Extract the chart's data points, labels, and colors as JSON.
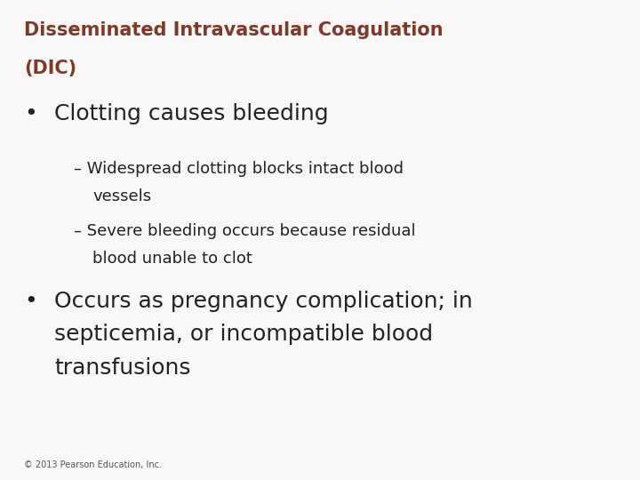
{
  "background_color": "#f8f6f6",
  "title_line1": "Disseminated Intravascular Coagulation",
  "title_line2": "(DIC)",
  "title_color": "#7B3B2A",
  "title_fontsize": 15,
  "bullet1_text": "Clotting causes bleeding",
  "bullet1_fontsize": 18,
  "bullet1_color": "#222222",
  "sub1_line1": "– Widespread clotting blocks intact blood",
  "sub1_line2": "   vessels",
  "sub2_line1": "– Severe bleeding occurs because residual",
  "sub2_line2": "   blood unable to clot",
  "sub_fontsize": 13,
  "sub_color": "#222222",
  "bullet2_line1": "Occurs as pregnancy complication; in",
  "bullet2_line2": "septicemia, or incompatible blood",
  "bullet2_line3": "transfusions",
  "bullet2_fontsize": 18,
  "bullet2_color": "#222222",
  "footer_text": "© 2013 Pearson Education, Inc.",
  "footer_fontsize": 7,
  "footer_color": "#555555",
  "bullet_symbol": "•"
}
